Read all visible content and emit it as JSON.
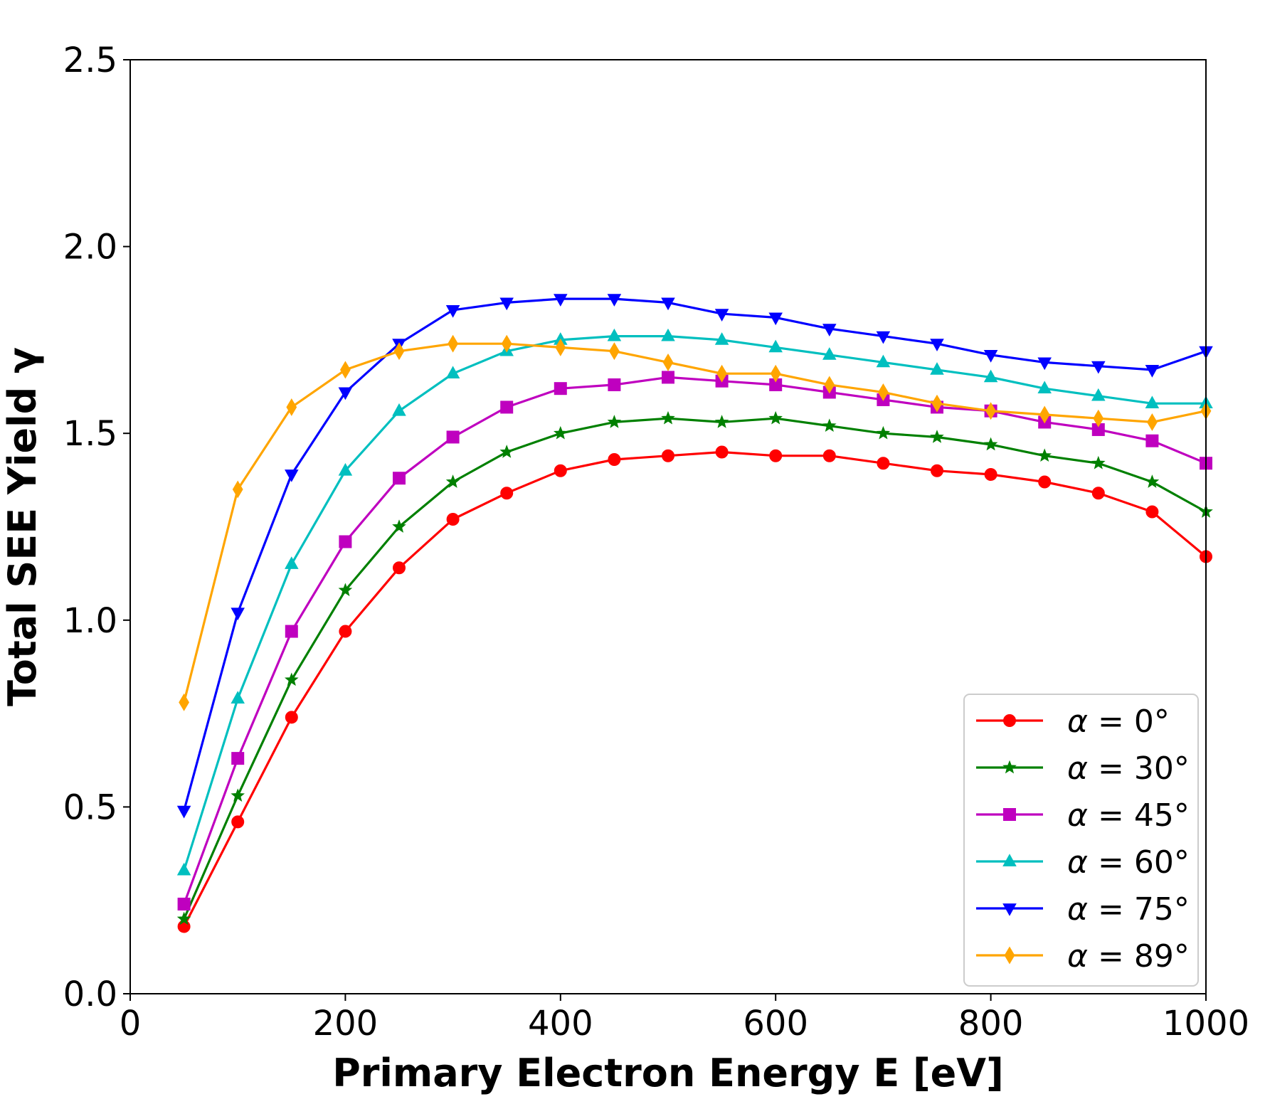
{
  "chart_data": {
    "type": "line",
    "title": "",
    "xlabel": "Primary Electron Energy E [eV]",
    "ylabel": "Total SEE Yield γ",
    "xlim": [
      0,
      1000
    ],
    "ylim": [
      0,
      2.5
    ],
    "xticks": [
      0,
      200,
      400,
      600,
      800,
      1000
    ],
    "xtick_labels": [
      "0",
      "200",
      "400",
      "600",
      "800",
      "1000"
    ],
    "yticks": [
      0,
      0.5,
      1.0,
      1.5,
      2.0,
      2.5
    ],
    "ytick_labels": [
      "0.0",
      "0.5",
      "1.0",
      "1.5",
      "2.0",
      "2.5"
    ],
    "grid": false,
    "legend_position": "bottom-right",
    "x": [
      50,
      100,
      150,
      200,
      250,
      300,
      350,
      400,
      450,
      500,
      550,
      600,
      650,
      700,
      750,
      800,
      850,
      900,
      950,
      1000
    ],
    "series": [
      {
        "name": "α = 0°",
        "legend_symbol": "α",
        "legend_value": " = 0°",
        "color": "#ff0000",
        "marker": "circle",
        "values": [
          0.18,
          0.46,
          0.74,
          0.97,
          1.14,
          1.27,
          1.34,
          1.4,
          1.43,
          1.44,
          1.45,
          1.44,
          1.44,
          1.42,
          1.4,
          1.39,
          1.37,
          1.34,
          1.29,
          1.17
        ]
      },
      {
        "name": "α = 30°",
        "legend_symbol": "α",
        "legend_value": " = 30°",
        "color": "#008000",
        "marker": "star",
        "values": [
          0.2,
          0.53,
          0.84,
          1.08,
          1.25,
          1.37,
          1.45,
          1.5,
          1.53,
          1.54,
          1.53,
          1.54,
          1.52,
          1.5,
          1.49,
          1.47,
          1.44,
          1.42,
          1.37,
          1.29
        ]
      },
      {
        "name": "α = 45°",
        "legend_symbol": "α",
        "legend_value": " = 45°",
        "color": "#bf00bf",
        "marker": "square",
        "values": [
          0.24,
          0.63,
          0.97,
          1.21,
          1.38,
          1.49,
          1.57,
          1.62,
          1.63,
          1.65,
          1.64,
          1.63,
          1.61,
          1.59,
          1.57,
          1.56,
          1.53,
          1.51,
          1.48,
          1.42
        ]
      },
      {
        "name": "α = 60°",
        "legend_symbol": "α",
        "legend_value": " = 60°",
        "color": "#00bfbf",
        "marker": "triangle-up",
        "values": [
          0.33,
          0.79,
          1.15,
          1.4,
          1.56,
          1.66,
          1.72,
          1.75,
          1.76,
          1.76,
          1.75,
          1.73,
          1.71,
          1.69,
          1.67,
          1.65,
          1.62,
          1.6,
          1.58,
          1.58
        ]
      },
      {
        "name": "α = 75°",
        "legend_symbol": "α",
        "legend_value": " = 75°",
        "color": "#0000ff",
        "marker": "triangle-down",
        "values": [
          0.49,
          1.02,
          1.39,
          1.61,
          1.74,
          1.83,
          1.85,
          1.86,
          1.86,
          1.85,
          1.82,
          1.81,
          1.78,
          1.76,
          1.74,
          1.71,
          1.69,
          1.68,
          1.67,
          1.72
        ]
      },
      {
        "name": "α = 89°",
        "legend_symbol": "α",
        "legend_value": " = 89°",
        "color": "#ffa500",
        "marker": "diamond",
        "values": [
          0.78,
          1.35,
          1.57,
          1.67,
          1.72,
          1.74,
          1.74,
          1.73,
          1.72,
          1.69,
          1.66,
          1.66,
          1.63,
          1.61,
          1.58,
          1.56,
          1.55,
          1.54,
          1.53,
          1.56
        ]
      }
    ]
  }
}
